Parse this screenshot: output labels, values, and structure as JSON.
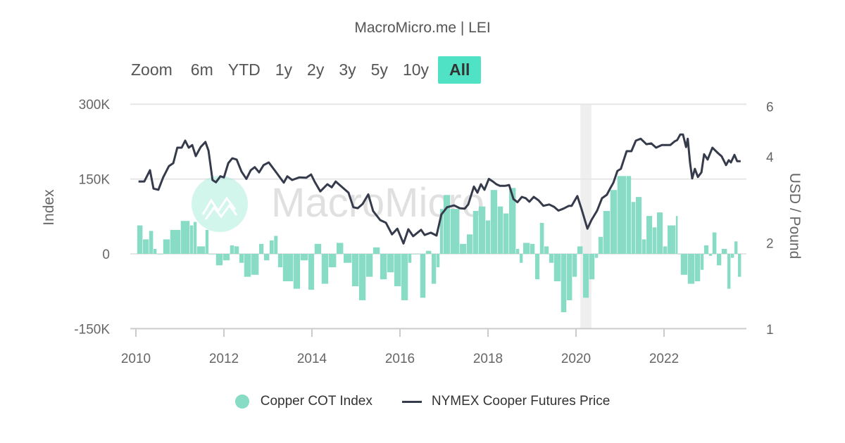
{
  "title": "MacroMicro.me | LEI",
  "zoom": {
    "label": "Zoom",
    "options": [
      "6m",
      "YTD",
      "1y",
      "2y",
      "3y",
      "5y",
      "10y",
      "All"
    ],
    "selected": "All"
  },
  "watermark": "MacroMicro",
  "colors": {
    "cot": "#88dcc5",
    "price": "#363b4c",
    "selected_button": "#4fe2c4",
    "shade": "#efefef"
  },
  "chart_data": {
    "type": "bar+line",
    "title": "MacroMicro.me | LEI",
    "ylabel": "Index",
    "y2label": "USD / Pound",
    "xlim": [
      2009.9,
      2023.9
    ],
    "ylim": [
      -150,
      300
    ],
    "y_tick_labels": [
      "300K",
      "150K",
      "0",
      "-150K"
    ],
    "y_ticks": [
      300,
      150,
      0,
      -150
    ],
    "y2_scale": "log",
    "y2lim": [
      1,
      6
    ],
    "y2_ticks": [
      6,
      4,
      2,
      1
    ],
    "x_ticks": [
      2010,
      2012,
      2014,
      2016,
      2018,
      2020,
      2022
    ],
    "grid": true,
    "legend_position": "bottom",
    "shaded_period": [
      2020.1,
      2020.35
    ],
    "series": [
      {
        "name": "Copper COT Index",
        "type": "bar",
        "unit": "K",
        "points": [
          [
            2010.03,
            57
          ],
          [
            2010.16,
            29
          ],
          [
            2010.3,
            46
          ],
          [
            2010.4,
            10
          ],
          [
            2010.48,
            0
          ],
          [
            2010.62,
            29
          ],
          [
            2010.78,
            48
          ],
          [
            2011.02,
            66
          ],
          [
            2011.23,
            57
          ],
          [
            2011.31,
            64
          ],
          [
            2011.39,
            15
          ],
          [
            2011.58,
            48
          ],
          [
            2011.66,
            0
          ],
          [
            2011.82,
            -23
          ],
          [
            2011.98,
            -13
          ],
          [
            2012.14,
            17
          ],
          [
            2012.24,
            15
          ],
          [
            2012.35,
            -18
          ],
          [
            2012.46,
            -46
          ],
          [
            2012.62,
            -42
          ],
          [
            2012.8,
            20
          ],
          [
            2012.91,
            -13
          ],
          [
            2013.04,
            27
          ],
          [
            2013.14,
            36
          ],
          [
            2013.23,
            -27
          ],
          [
            2013.34,
            -55
          ],
          [
            2013.58,
            -70
          ],
          [
            2013.74,
            -13
          ],
          [
            2013.92,
            -72
          ],
          [
            2014.06,
            20
          ],
          [
            2014.22,
            -60
          ],
          [
            2014.38,
            -27
          ],
          [
            2014.56,
            22
          ],
          [
            2014.72,
            -18
          ],
          [
            2014.91,
            -65
          ],
          [
            2015.07,
            -93
          ],
          [
            2015.23,
            -46
          ],
          [
            2015.39,
            13
          ],
          [
            2015.55,
            -51
          ],
          [
            2015.71,
            -37
          ],
          [
            2015.87,
            -65
          ],
          [
            2016.03,
            -93
          ],
          [
            2016.19,
            -18
          ],
          [
            2016.27,
            0
          ],
          [
            2016.46,
            -88
          ],
          [
            2016.59,
            6
          ],
          [
            2016.72,
            -60
          ],
          [
            2016.83,
            -27
          ],
          [
            2016.91,
            90
          ],
          [
            2016.99,
            118
          ],
          [
            2017.15,
            90
          ],
          [
            2017.36,
            20
          ],
          [
            2017.52,
            39
          ],
          [
            2017.66,
            86
          ],
          [
            2017.79,
            95
          ],
          [
            2017.95,
            67
          ],
          [
            2018.06,
            128
          ],
          [
            2018.22,
            95
          ],
          [
            2018.35,
            81
          ],
          [
            2018.48,
            132
          ],
          [
            2018.64,
            10
          ],
          [
            2018.72,
            -18
          ],
          [
            2018.8,
            22
          ],
          [
            2018.96,
            20
          ],
          [
            2019.07,
            -51
          ],
          [
            2019.18,
            62
          ],
          [
            2019.28,
            15
          ],
          [
            2019.39,
            -18
          ],
          [
            2019.5,
            -55
          ],
          [
            2019.66,
            -117
          ],
          [
            2019.79,
            -93
          ],
          [
            2019.92,
            -46
          ],
          [
            2020.03,
            15
          ],
          [
            2020.16,
            -88
          ],
          [
            2020.3,
            -51
          ],
          [
            2020.43,
            -8
          ],
          [
            2020.51,
            34
          ],
          [
            2020.62,
            86
          ],
          [
            2020.78,
            128
          ],
          [
            2020.94,
            156
          ],
          [
            2021.15,
            156
          ],
          [
            2021.26,
            104
          ],
          [
            2021.36,
            114
          ],
          [
            2021.5,
            29
          ],
          [
            2021.6,
            76
          ],
          [
            2021.74,
            53
          ],
          [
            2021.84,
            83
          ],
          [
            2021.98,
            15
          ],
          [
            2022.08,
            57
          ],
          [
            2022.27,
            76
          ],
          [
            2022.32,
            0
          ],
          [
            2022.38,
            -42
          ],
          [
            2022.54,
            -60
          ],
          [
            2022.7,
            -55
          ],
          [
            2022.83,
            -32
          ],
          [
            2022.91,
            17
          ],
          [
            2023.02,
            -4
          ],
          [
            2023.1,
            43
          ],
          [
            2023.2,
            -23
          ],
          [
            2023.31,
            10
          ],
          [
            2023.44,
            -70
          ],
          [
            2023.52,
            -8
          ],
          [
            2023.6,
            25
          ],
          [
            2023.68,
            -46
          ]
        ]
      },
      {
        "name": "NYMEX Cooper Futures Price",
        "type": "line",
        "axis": "right",
        "points": [
          [
            2010.06,
            3.26
          ],
          [
            2010.19,
            3.26
          ],
          [
            2010.32,
            3.57
          ],
          [
            2010.4,
            3.08
          ],
          [
            2010.51,
            3.05
          ],
          [
            2010.62,
            3.37
          ],
          [
            2010.75,
            3.69
          ],
          [
            2010.85,
            3.78
          ],
          [
            2010.94,
            4.28
          ],
          [
            2011.04,
            4.28
          ],
          [
            2011.12,
            4.53
          ],
          [
            2011.2,
            4.28
          ],
          [
            2011.28,
            4.37
          ],
          [
            2011.36,
            4.0
          ],
          [
            2011.47,
            4.3
          ],
          [
            2011.58,
            4.48
          ],
          [
            2011.65,
            4.18
          ],
          [
            2011.74,
            3.3
          ],
          [
            2011.82,
            3.24
          ],
          [
            2011.92,
            3.4
          ],
          [
            2012.0,
            3.37
          ],
          [
            2012.1,
            3.78
          ],
          [
            2012.19,
            3.93
          ],
          [
            2012.29,
            3.89
          ],
          [
            2012.4,
            3.53
          ],
          [
            2012.51,
            3.33
          ],
          [
            2012.61,
            3.57
          ],
          [
            2012.7,
            3.66
          ],
          [
            2012.8,
            3.51
          ],
          [
            2012.9,
            3.72
          ],
          [
            2013.02,
            3.8
          ],
          [
            2013.2,
            3.49
          ],
          [
            2013.36,
            3.23
          ],
          [
            2013.44,
            3.4
          ],
          [
            2013.55,
            3.3
          ],
          [
            2013.71,
            3.37
          ],
          [
            2013.87,
            3.36
          ],
          [
            2013.98,
            3.45
          ],
          [
            2014.06,
            3.26
          ],
          [
            2014.19,
            3.01
          ],
          [
            2014.35,
            3.19
          ],
          [
            2014.45,
            3.11
          ],
          [
            2014.54,
            3.26
          ],
          [
            2014.66,
            3.14
          ],
          [
            2014.83,
            2.98
          ],
          [
            2014.94,
            2.65
          ],
          [
            2015.04,
            2.63
          ],
          [
            2015.15,
            2.72
          ],
          [
            2015.28,
            2.94
          ],
          [
            2015.39,
            2.57
          ],
          [
            2015.55,
            2.39
          ],
          [
            2015.68,
            2.34
          ],
          [
            2015.82,
            2.13
          ],
          [
            2015.94,
            2.23
          ],
          [
            2016.08,
            1.98
          ],
          [
            2016.19,
            2.22
          ],
          [
            2016.3,
            2.1
          ],
          [
            2016.48,
            2.21
          ],
          [
            2016.56,
            2.12
          ],
          [
            2016.7,
            2.16
          ],
          [
            2016.83,
            2.11
          ],
          [
            2016.94,
            2.5
          ],
          [
            2017.07,
            2.65
          ],
          [
            2017.23,
            2.69
          ],
          [
            2017.36,
            2.63
          ],
          [
            2017.47,
            2.62
          ],
          [
            2017.55,
            2.71
          ],
          [
            2017.68,
            3.13
          ],
          [
            2017.76,
            2.98
          ],
          [
            2017.84,
            3.19
          ],
          [
            2017.92,
            3.05
          ],
          [
            2018.02,
            3.33
          ],
          [
            2018.11,
            3.26
          ],
          [
            2018.19,
            3.19
          ],
          [
            2018.27,
            3.15
          ],
          [
            2018.4,
            3.15
          ],
          [
            2018.48,
            3.17
          ],
          [
            2018.58,
            2.83
          ],
          [
            2018.67,
            2.76
          ],
          [
            2018.77,
            2.88
          ],
          [
            2018.86,
            2.85
          ],
          [
            2018.94,
            2.77
          ],
          [
            2019.04,
            2.88
          ],
          [
            2019.15,
            2.8
          ],
          [
            2019.26,
            2.68
          ],
          [
            2019.39,
            2.71
          ],
          [
            2019.5,
            2.66
          ],
          [
            2019.6,
            2.58
          ],
          [
            2019.71,
            2.62
          ],
          [
            2019.84,
            2.68
          ],
          [
            2019.9,
            2.68
          ],
          [
            2020.03,
            2.9
          ],
          [
            2020.13,
            2.6
          ],
          [
            2020.26,
            2.23
          ],
          [
            2020.35,
            2.39
          ],
          [
            2020.48,
            2.58
          ],
          [
            2020.59,
            2.85
          ],
          [
            2020.7,
            2.93
          ],
          [
            2020.77,
            3.07
          ],
          [
            2020.85,
            3.23
          ],
          [
            2020.94,
            3.55
          ],
          [
            2021.02,
            3.61
          ],
          [
            2021.15,
            4.16
          ],
          [
            2021.26,
            4.16
          ],
          [
            2021.36,
            4.53
          ],
          [
            2021.47,
            4.6
          ],
          [
            2021.6,
            4.4
          ],
          [
            2021.71,
            4.43
          ],
          [
            2021.82,
            4.28
          ],
          [
            2021.95,
            4.37
          ],
          [
            2022.14,
            4.37
          ],
          [
            2022.24,
            4.5
          ],
          [
            2022.3,
            4.55
          ],
          [
            2022.37,
            4.76
          ],
          [
            2022.43,
            4.76
          ],
          [
            2022.5,
            4.3
          ],
          [
            2022.54,
            4.6
          ],
          [
            2022.59,
            3.8
          ],
          [
            2022.64,
            3.34
          ],
          [
            2022.7,
            3.61
          ],
          [
            2022.77,
            3.38
          ],
          [
            2022.85,
            3.51
          ],
          [
            2022.91,
            4.06
          ],
          [
            2022.99,
            3.89
          ],
          [
            2023.1,
            4.28
          ],
          [
            2023.23,
            4.09
          ],
          [
            2023.31,
            3.99
          ],
          [
            2023.41,
            3.72
          ],
          [
            2023.47,
            3.87
          ],
          [
            2023.52,
            3.8
          ],
          [
            2023.6,
            4.04
          ],
          [
            2023.66,
            3.84
          ],
          [
            2023.74,
            3.84
          ]
        ]
      }
    ]
  }
}
